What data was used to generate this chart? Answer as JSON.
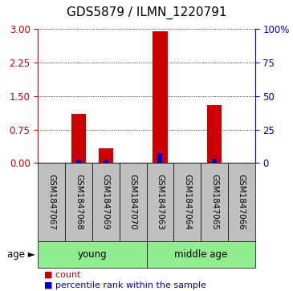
{
  "title": "GDS5879 / ILMN_1220791",
  "samples": [
    "GSM1847067",
    "GSM1847068",
    "GSM1847069",
    "GSM1847070",
    "GSM1847063",
    "GSM1847064",
    "GSM1847065",
    "GSM1847066"
  ],
  "count_values": [
    0.0,
    1.1,
    0.32,
    0.0,
    2.95,
    0.0,
    1.3,
    0.0
  ],
  "percentile_values": [
    0.0,
    0.08,
    0.06,
    0.0,
    0.22,
    0.0,
    0.1,
    0.0
  ],
  "left_ylim": [
    0,
    3
  ],
  "left_yticks": [
    0,
    0.75,
    1.5,
    2.25,
    3
  ],
  "right_ylim": [
    0,
    100
  ],
  "right_yticks": [
    0,
    25,
    50,
    75,
    100
  ],
  "groups": [
    {
      "label": "young",
      "start": 0,
      "end": 4
    },
    {
      "label": "middle age",
      "start": 4,
      "end": 8
    }
  ],
  "red_color": "#CC0000",
  "blue_color": "#0000CC",
  "gray_color": "#C0C0C0",
  "green_color": "#90EE90",
  "legend_count": "count",
  "legend_pct": "percentile rank within the sample",
  "title_fontsize": 11,
  "label_fontsize": 7.5,
  "tick_fontsize": 8.5,
  "age_fontsize": 8.5,
  "legend_fontsize": 8
}
